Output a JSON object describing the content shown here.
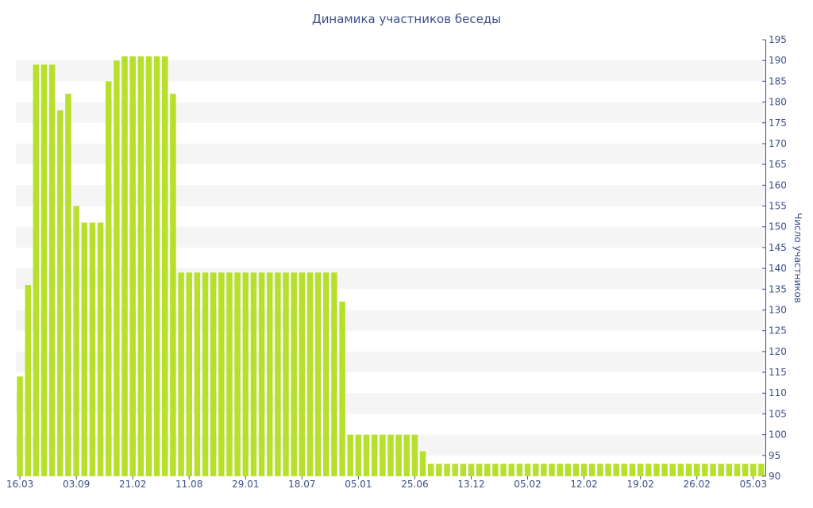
{
  "chart_data": {
    "type": "bar",
    "title": "Динамика участников беседы",
    "xlabel": "",
    "ylabel": "Число участников",
    "ylim": [
      90,
      195
    ],
    "ytick_step": 5,
    "grid": "alternating bands",
    "bar_color": "#b7e02d",
    "band_color": "#f5f5f5",
    "text_color": "#3e4f8a",
    "x_tick_labels": [
      {
        "index": 0,
        "label": "16.03"
      },
      {
        "index": 7,
        "label": "03.09"
      },
      {
        "index": 14,
        "label": "21.02"
      },
      {
        "index": 21,
        "label": "11.08"
      },
      {
        "index": 28,
        "label": "29.01"
      },
      {
        "index": 35,
        "label": "18.07"
      },
      {
        "index": 42,
        "label": "05.01"
      },
      {
        "index": 49,
        "label": "25.06"
      },
      {
        "index": 56,
        "label": "13.12"
      },
      {
        "index": 63,
        "label": "05.02"
      },
      {
        "index": 70,
        "label": "12.02"
      },
      {
        "index": 77,
        "label": "19.02"
      },
      {
        "index": 84,
        "label": "26.02"
      },
      {
        "index": 91,
        "label": "05.03"
      }
    ],
    "values": [
      114,
      136,
      189,
      189,
      189,
      178,
      182,
      155,
      151,
      151,
      151,
      185,
      190,
      191,
      191,
      191,
      191,
      191,
      191,
      182,
      139,
      139,
      139,
      139,
      139,
      139,
      139,
      139,
      139,
      139,
      139,
      139,
      139,
      139,
      139,
      139,
      139,
      139,
      139,
      139,
      132,
      100,
      100,
      100,
      100,
      100,
      100,
      100,
      100,
      100,
      96,
      93,
      93,
      93,
      93,
      93,
      93,
      93,
      93,
      93,
      93,
      93,
      93,
      93,
      93,
      93,
      93,
      93,
      93,
      93,
      93,
      93,
      93,
      93,
      93,
      93,
      93,
      93,
      93,
      93,
      93,
      93,
      93,
      93,
      93,
      93,
      93,
      93,
      93,
      93,
      93,
      93,
      93
    ]
  }
}
